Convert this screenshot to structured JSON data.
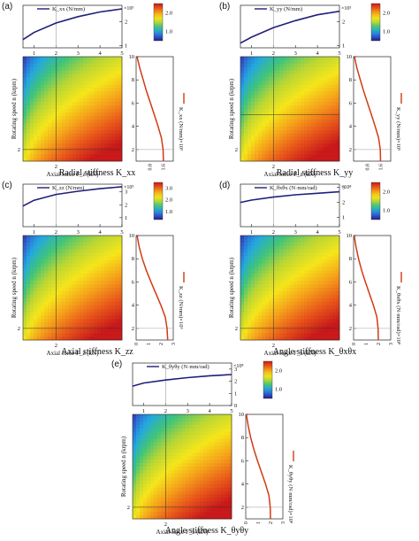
{
  "figure": {
    "axis_labels": {
      "x_top": "",
      "x_heatmap": "Axial force F_z (kN)",
      "y_heatmap": "Rotating speed n (krpm)"
    },
    "colors": {
      "line_top": "#1f1f7a",
      "line_side": "#d23a14",
      "colormap": [
        "#2b1a8a",
        "#2f5fd0",
        "#23a7e0",
        "#3fc47a",
        "#b9d634",
        "#f5e61a",
        "#f5a21a",
        "#e8571a",
        "#c8181a"
      ]
    }
  },
  "chart_data": [
    {
      "panel": "(a)",
      "type": "heatmap",
      "caption": "Radial stiffness K_xx",
      "top_line": {
        "legend": "K_xx (N/mm)",
        "exp": "×10⁵",
        "x": [
          0.5,
          1,
          2,
          3,
          4,
          5
        ],
        "y": [
          1.25,
          1.55,
          1.95,
          2.22,
          2.42,
          2.55
        ],
        "xticks": [
          1,
          2,
          3,
          4,
          5
        ],
        "yticks": [
          1,
          2
        ],
        "ylim": [
          0.9,
          2.7
        ]
      },
      "colorbar": {
        "ticks": [
          "1.0",
          "2.0"
        ],
        "min": 0.5,
        "max": 2.5
      },
      "heatmap": {
        "xtick": "2",
        "xlim": [
          0.5,
          5
        ],
        "ylim": [
          1,
          10
        ],
        "marker_x": 2,
        "marker_y": 2
      },
      "side_line": {
        "label": "K_xx (N/mm)×10⁵",
        "xticks": [
          "0.8",
          "1.6"
        ],
        "yticks": [
          2,
          4,
          6,
          8,
          10
        ],
        "xlim": [
          0,
          2.2
        ],
        "n": [
          1,
          2,
          3,
          4,
          5,
          6,
          7,
          8,
          9,
          10
        ],
        "k": [
          1.62,
          1.6,
          1.5,
          1.3,
          1.08,
          0.85,
          0.62,
          0.42,
          0.22,
          0.05
        ]
      }
    },
    {
      "panel": "(b)",
      "type": "heatmap",
      "caption": "Radial stiffness K_yy",
      "top_line": {
        "legend": "K_yy (N/mm)",
        "exp": "×10⁵",
        "x": [
          0.5,
          1,
          2,
          3,
          4,
          5
        ],
        "y": [
          1.1,
          1.35,
          1.75,
          2.05,
          2.3,
          2.45
        ],
        "xticks": [
          1,
          2,
          3,
          4,
          5
        ],
        "yticks": [
          1,
          2
        ],
        "ylim": [
          0.9,
          2.7
        ]
      },
      "colorbar": {
        "ticks": [
          "1.0",
          "2.0"
        ],
        "min": 0.5,
        "max": 2.5
      },
      "heatmap": {
        "xtick": "2",
        "xlim": [
          0.5,
          5
        ],
        "ylim": [
          1,
          10
        ],
        "marker_x": 2,
        "marker_y": 5
      },
      "side_line": {
        "label": "K_yy (N/mm)×10⁵",
        "xticks": [
          "0.8",
          "1.6"
        ],
        "yticks": [
          2,
          4,
          6,
          8,
          10
        ],
        "xlim": [
          0,
          2.2
        ],
        "n": [
          1,
          2,
          3,
          4,
          5,
          6,
          7,
          8,
          9,
          10
        ],
        "k": [
          1.6,
          1.58,
          1.48,
          1.28,
          1.06,
          0.83,
          0.6,
          0.4,
          0.2,
          0.05
        ]
      }
    },
    {
      "panel": "(c)",
      "type": "heatmap",
      "caption": "Axial stiffness K_zz",
      "top_line": {
        "legend": "K_zz (N/mm)",
        "exp": "×10⁵",
        "x": [
          0.5,
          1,
          2,
          3,
          4,
          5
        ],
        "y": [
          1.9,
          2.35,
          2.8,
          3.05,
          3.25,
          3.4
        ],
        "xticks": [
          1,
          2,
          3,
          4,
          5
        ],
        "yticks": [
          1,
          2,
          3
        ],
        "ylim": [
          0.3,
          3.6
        ]
      },
      "colorbar": {
        "ticks": [
          "1.0",
          "2.0",
          "3.0"
        ],
        "min": 0.3,
        "max": 3.5
      },
      "heatmap": {
        "xtick": "2",
        "xlim": [
          0.5,
          5
        ],
        "ylim": [
          1,
          10
        ],
        "marker_x": 2,
        "marker_y": 2
      },
      "side_line": {
        "label": "K_zz (N/mm)×10⁵",
        "xticks": [
          "0",
          "1",
          "2",
          "3"
        ],
        "yticks": [
          2,
          4,
          6,
          8,
          10
        ],
        "xlim": [
          0,
          3
        ],
        "n": [
          1,
          2,
          3,
          4,
          5,
          6,
          7,
          8,
          9,
          10
        ],
        "k": [
          2.55,
          2.5,
          2.35,
          2.0,
          1.6,
          1.2,
          0.82,
          0.5,
          0.25,
          0.08
        ]
      }
    },
    {
      "panel": "(d)",
      "type": "heatmap",
      "caption": "Angle stiffness K_θxθx",
      "top_line": {
        "legend": "K_θxθx (N·mm/rad)",
        "exp": "×10⁸",
        "x": [
          0.5,
          1,
          2,
          3,
          4,
          5
        ],
        "y": [
          2.0,
          2.15,
          2.35,
          2.5,
          2.6,
          2.7
        ],
        "xticks": [
          1,
          2,
          3,
          4,
          5
        ],
        "yticks": [
          1,
          2,
          3
        ],
        "ylim": [
          0.4,
          3.2
        ]
      },
      "colorbar": {
        "ticks": [
          "1.0",
          "2.0"
        ],
        "min": 0.5,
        "max": 2.5
      },
      "heatmap": {
        "xtick": "2",
        "xlim": [
          0.5,
          5
        ],
        "ylim": [
          1,
          10
        ],
        "marker_x": 2,
        "marker_y": 2
      },
      "side_line": {
        "label": "K_θxθx (N·mm/rad)×10⁸",
        "xticks": [
          "0",
          "1",
          "2",
          "3"
        ],
        "yticks": [
          2,
          4,
          6,
          8,
          10
        ],
        "xlim": [
          0,
          3
        ],
        "n": [
          1,
          2,
          3,
          4,
          5,
          6,
          7,
          8,
          9,
          10
        ],
        "k": [
          2.0,
          1.98,
          1.88,
          1.6,
          1.28,
          0.95,
          0.65,
          0.4,
          0.2,
          0.05
        ]
      }
    },
    {
      "panel": "(e)",
      "type": "heatmap",
      "caption": "Angle stiffness K_θyθy",
      "top_line": {
        "legend": "K_θyθy (N·mm/rad)",
        "exp": "×10⁸",
        "x": [
          0.5,
          1,
          2,
          3,
          4,
          5
        ],
        "y": [
          1.6,
          1.85,
          2.1,
          2.3,
          2.45,
          2.55
        ],
        "xticks": [
          1,
          2,
          3,
          4,
          5
        ],
        "yticks": [
          0.0,
          1.0,
          2.0,
          3.0
        ],
        "ylim": [
          0,
          3.5
        ]
      },
      "colorbar": {
        "ticks": [
          "1.0",
          "2.0"
        ],
        "min": 0.5,
        "max": 2.5
      },
      "heatmap": {
        "xtick": "2",
        "xlim": [
          0.5,
          5
        ],
        "ylim": [
          1,
          10
        ],
        "marker_x": 2,
        "marker_y": 2
      },
      "side_line": {
        "label": "K_θyθy (N·mm/rad)×10⁸",
        "xticks": [
          "0",
          "1",
          "2",
          "3"
        ],
        "yticks": [
          2,
          4,
          6,
          8,
          10
        ],
        "xlim": [
          0,
          3
        ],
        "n": [
          1,
          2,
          3,
          4,
          5,
          6,
          7,
          8,
          9,
          10
        ],
        "k": [
          2.0,
          1.98,
          1.88,
          1.6,
          1.28,
          0.95,
          0.65,
          0.4,
          0.2,
          0.05
        ]
      }
    }
  ]
}
